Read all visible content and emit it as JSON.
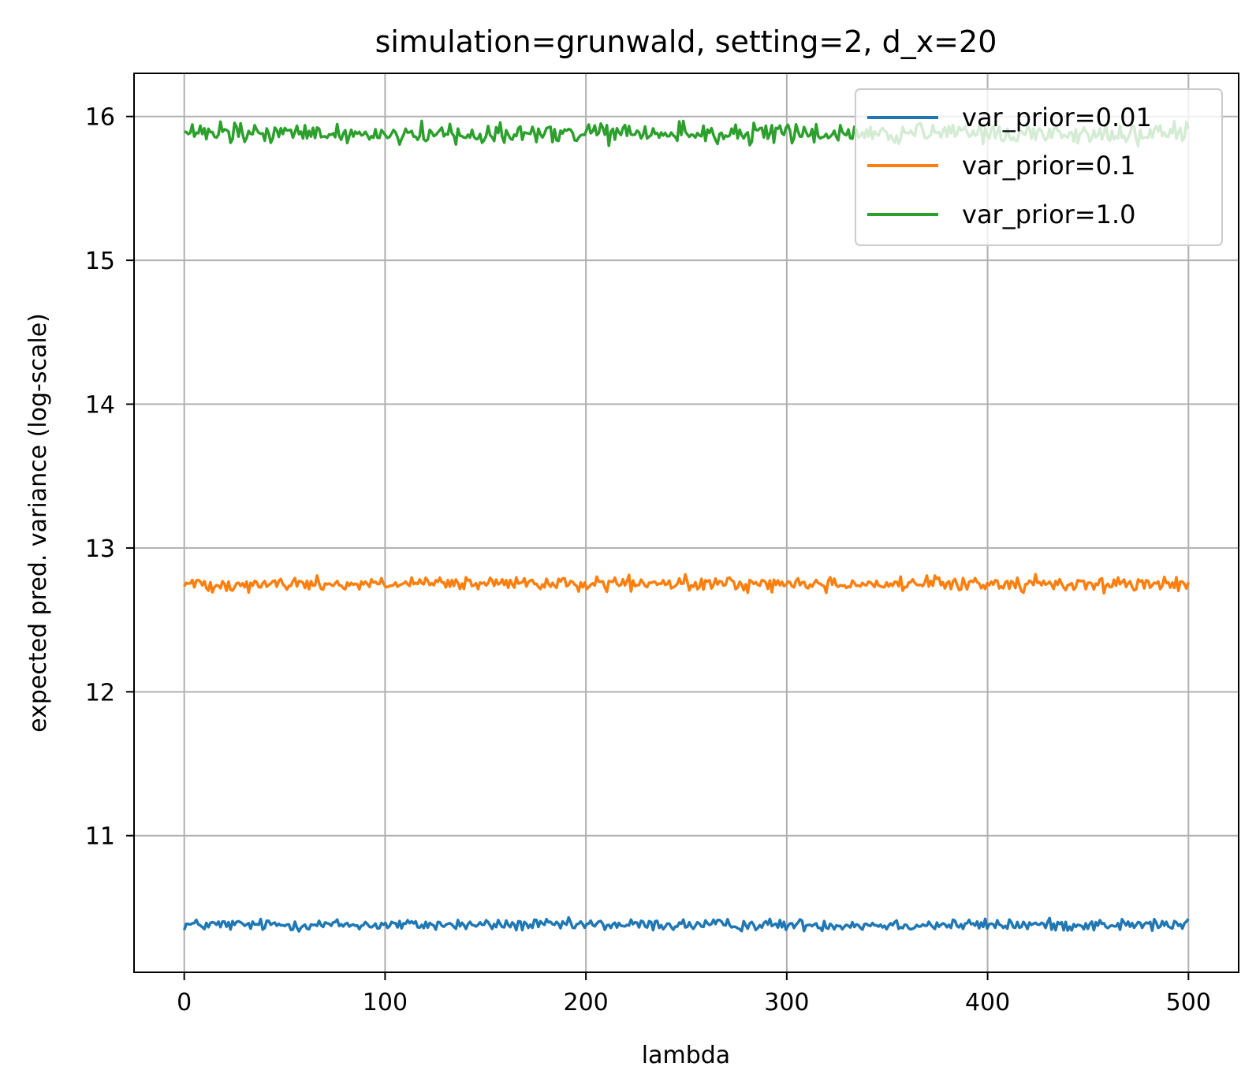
{
  "chart_data": {
    "type": "line",
    "title": "simulation=grunwald, setting=2, d_x=20",
    "xlabel": "lambda",
    "ylabel": "expected pred. variance (log-scale)",
    "xlim": [
      -25,
      525
    ],
    "ylim": [
      10.05,
      16.3
    ],
    "x_ticks": [
      0,
      100,
      200,
      300,
      400,
      500
    ],
    "y_ticks": [
      11,
      12,
      13,
      14,
      15,
      16
    ],
    "grid": true,
    "legend_position": "upper right",
    "x_range": [
      0,
      500
    ],
    "num_points": 500,
    "series": [
      {
        "name": "var_prior=0.01",
        "color": "#1f77b4",
        "mean": 10.38,
        "noise_amplitude": 0.025
      },
      {
        "name": "var_prior=0.1",
        "color": "#ff7f0e",
        "mean": 12.75,
        "noise_amplitude": 0.03
      },
      {
        "name": "var_prior=1.0",
        "color": "#2ca02c",
        "mean": 15.88,
        "noise_amplitude": 0.045
      }
    ]
  }
}
